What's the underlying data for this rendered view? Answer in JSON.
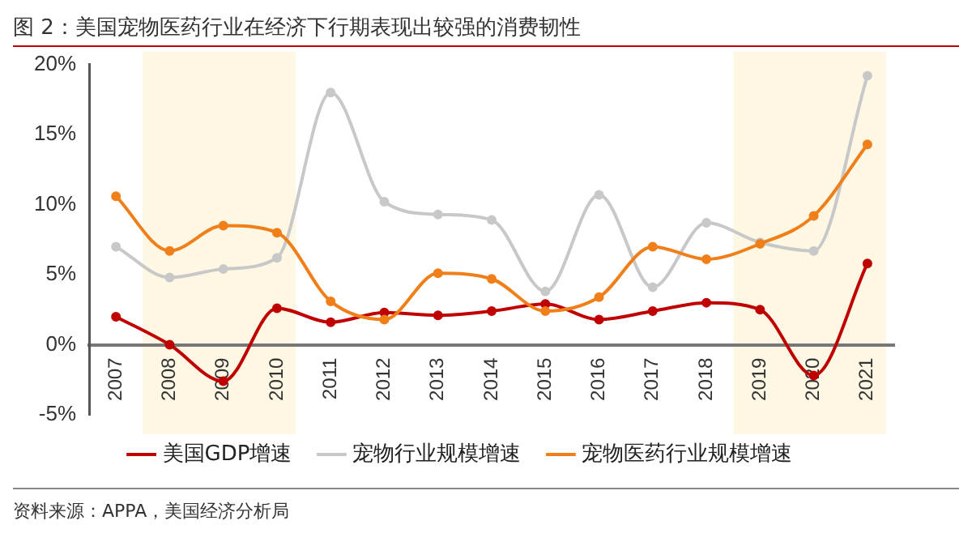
{
  "chart_data": {
    "type": "line",
    "title": "图 2：美国宠物医药行业在经济下行期表现出较强的消费韧性",
    "categories": [
      "2007",
      "2008",
      "2009",
      "2010",
      "2011",
      "2012",
      "2013",
      "2014",
      "2015",
      "2016",
      "2017",
      "2018",
      "2019",
      "2020",
      "2021"
    ],
    "series": [
      {
        "name": "美国GDP增速",
        "color": "#c00000",
        "values": [
          2.0,
          0.0,
          -2.6,
          2.6,
          1.6,
          2.3,
          2.1,
          2.4,
          2.9,
          1.8,
          2.4,
          3.0,
          2.5,
          -2.2,
          5.8
        ]
      },
      {
        "name": "宠物行业规模增速",
        "color": "#c8c8c8",
        "values": [
          7.0,
          4.8,
          5.4,
          6.2,
          18.0,
          10.2,
          9.3,
          8.9,
          3.8,
          10.7,
          4.1,
          8.7,
          7.3,
          6.7,
          19.2
        ]
      },
      {
        "name": "宠物医药行业规模增速",
        "color": "#f07f1a",
        "values": [
          10.6,
          6.7,
          8.5,
          8.0,
          3.1,
          1.8,
          5.1,
          4.7,
          2.4,
          3.4,
          7.0,
          6.1,
          7.2,
          9.2,
          14.3
        ]
      }
    ],
    "ylim": [
      -5,
      20
    ],
    "yticks": [
      {
        "value": -5,
        "label": "-5%"
      },
      {
        "value": 0,
        "label": "0%"
      },
      {
        "value": 5,
        "label": "5%"
      },
      {
        "value": 10,
        "label": "10%"
      },
      {
        "value": 15,
        "label": "15%"
      },
      {
        "value": 20,
        "label": "20%"
      }
    ],
    "bands": [
      {
        "axis": "x",
        "from": "2008",
        "to": "2010",
        "color": "#fdf7e3"
      },
      {
        "axis": "x",
        "from": "2019",
        "to": "2021",
        "color": "#fdf7e3"
      }
    ],
    "grid": false,
    "legend": "bottom",
    "marker": "circle",
    "line_style": "solid",
    "annotations": [
      "资料来源：APPA，美国经济分析局"
    ]
  }
}
